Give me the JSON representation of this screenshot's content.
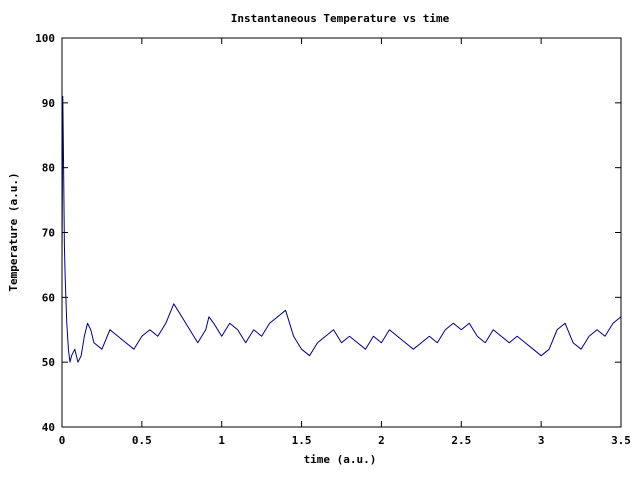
{
  "chart_data": {
    "type": "line",
    "title": "Instantaneous Temperature vs time",
    "xlabel": "time (a.u.)",
    "ylabel": "Temperature (a.u.)",
    "xlim": [
      0,
      3.5
    ],
    "ylim": [
      40,
      100
    ],
    "xticks": [
      {
        "value": 0,
        "label": "0"
      },
      {
        "value": 0.5,
        "label": "0.5"
      },
      {
        "value": 1,
        "label": "1"
      },
      {
        "value": 1.5,
        "label": "1.5"
      },
      {
        "value": 2,
        "label": "2"
      },
      {
        "value": 2.5,
        "label": "2.5"
      },
      {
        "value": 3,
        "label": "3"
      },
      {
        "value": 3.5,
        "label": "3.5"
      }
    ],
    "yticks": [
      {
        "value": 40,
        "label": "40"
      },
      {
        "value": 50,
        "label": "50"
      },
      {
        "value": 60,
        "label": "60"
      },
      {
        "value": 70,
        "label": "70"
      },
      {
        "value": 80,
        "label": "80"
      },
      {
        "value": 90,
        "label": "90"
      },
      {
        "value": 100,
        "label": "100"
      }
    ],
    "grid": false,
    "legend": "none",
    "series_color": "#000080",
    "series": [
      {
        "name": "",
        "x": [
          0,
          0.005,
          0.01,
          0.015,
          0.02,
          0.03,
          0.04,
          0.05,
          0.06,
          0.08,
          0.1,
          0.12,
          0.14,
          0.16,
          0.18,
          0.2,
          0.25,
          0.3,
          0.35,
          0.4,
          0.45,
          0.5,
          0.55,
          0.6,
          0.65,
          0.7,
          0.75,
          0.8,
          0.85,
          0.9,
          0.92,
          0.95,
          1.0,
          1.05,
          1.1,
          1.15,
          1.2,
          1.25,
          1.3,
          1.35,
          1.4,
          1.45,
          1.5,
          1.55,
          1.6,
          1.65,
          1.7,
          1.75,
          1.8,
          1.85,
          1.9,
          1.95,
          2.0,
          2.05,
          2.1,
          2.15,
          2.2,
          2.25,
          2.3,
          2.35,
          2.4,
          2.45,
          2.5,
          2.55,
          2.6,
          2.65,
          2.7,
          2.75,
          2.8,
          2.85,
          2.9,
          2.95,
          3.0,
          3.05,
          3.1,
          3.15,
          3.2,
          3.25,
          3.3,
          3.35,
          3.4,
          3.45,
          3.5
        ],
        "y": [
          66,
          91,
          80,
          68,
          63,
          56,
          52,
          50,
          51,
          52,
          50,
          51,
          54,
          56,
          55,
          53,
          52,
          55,
          54,
          53,
          52,
          54,
          55,
          54,
          56,
          59,
          57,
          55,
          53,
          55,
          57,
          56,
          54,
          56,
          55,
          53,
          55,
          54,
          56,
          57,
          58,
          54,
          52,
          51,
          53,
          54,
          55,
          53,
          54,
          53,
          52,
          54,
          53,
          55,
          54,
          53,
          52,
          53,
          54,
          53,
          55,
          56,
          55,
          56,
          54,
          53,
          55,
          54,
          53,
          54,
          53,
          52,
          51,
          52,
          55,
          56,
          53,
          52,
          54,
          55,
          54,
          56,
          57
        ]
      }
    ]
  }
}
